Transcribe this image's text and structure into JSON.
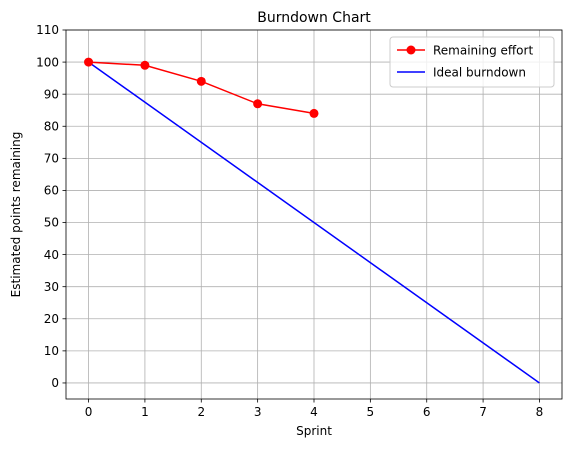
{
  "chart_data": {
    "type": "line",
    "title": "Burndown Chart",
    "xlabel": "Sprint",
    "ylabel": "Estimated points remaining",
    "xlim": [
      -0.4,
      8.4
    ],
    "ylim": [
      -5,
      110
    ],
    "xticks": [
      0,
      1,
      2,
      3,
      4,
      5,
      6,
      7,
      8
    ],
    "yticks": [
      0,
      10,
      20,
      30,
      40,
      50,
      60,
      70,
      80,
      90,
      100,
      110
    ],
    "grid": true,
    "legend_position": "top-right",
    "series": [
      {
        "name": "Remaining effort",
        "color": "#ff0000",
        "marker": "circle",
        "x": [
          0,
          1,
          2,
          3,
          4
        ],
        "y": [
          100,
          99,
          94,
          87,
          84
        ]
      },
      {
        "name": "Ideal burndown",
        "color": "#0000ff",
        "marker": "none",
        "x": [
          0,
          8
        ],
        "y": [
          100,
          0
        ]
      }
    ]
  }
}
